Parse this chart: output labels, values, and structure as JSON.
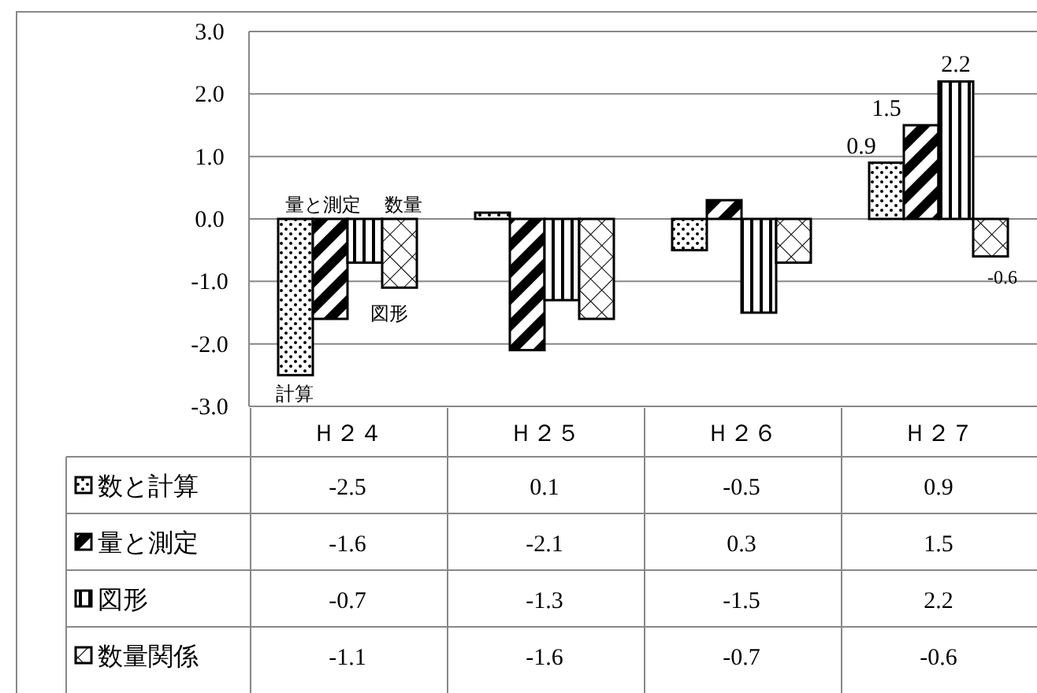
{
  "chart_data": {
    "type": "bar",
    "categories": [
      "Ｈ２４",
      "Ｈ２５",
      "Ｈ２６",
      "Ｈ２７"
    ],
    "series": [
      {
        "name": "数と計算",
        "color": "#000000",
        "values": [
          -2.5,
          0.1,
          -0.5,
          0.9
        ],
        "value_labels": [
          "-2.5",
          "0.1",
          "-0.5",
          "0.9"
        ]
      },
      {
        "name": "量と測定",
        "color": "#000000",
        "values": [
          -1.6,
          -2.1,
          0.3,
          1.5
        ],
        "value_labels": [
          "-1.6",
          "-2.1",
          "0.3",
          "1.5"
        ]
      },
      {
        "name": "図形",
        "color": "#000000",
        "values": [
          -0.7,
          -1.3,
          -1.5,
          2.2
        ],
        "value_labels": [
          "-0.7",
          "-1.3",
          "-1.5",
          "2.2"
        ]
      },
      {
        "name": "数量関係",
        "color": "#000000",
        "values": [
          -1.1,
          -1.6,
          -0.7,
          -0.6
        ],
        "value_labels": [
          "-1.1",
          "-1.6",
          "-0.7",
          "-0.6"
        ]
      }
    ],
    "ylim": [
      -3,
      3
    ],
    "yticks": [
      {
        "value": -3,
        "label": "-3.0"
      },
      {
        "value": -2,
        "label": "-2.0"
      },
      {
        "value": -1,
        "label": "-1.0"
      },
      {
        "value": 0,
        "label": "0.0"
      },
      {
        "value": 1,
        "label": "1.0"
      },
      {
        "value": 2,
        "label": "2.0"
      },
      {
        "value": 3,
        "label": "3.0"
      }
    ],
    "grid": "y",
    "legend": "bottom",
    "annotations": [
      "計算",
      "量と測定",
      "図形",
      "数量",
      {
        "text": "0.9",
        "x": "Ｈ２７",
        "y": 0.9
      },
      {
        "text": "1.5",
        "x": "Ｈ２７",
        "y": 1.5
      },
      {
        "text": "2.2",
        "x": "Ｈ２７",
        "y": 2.2
      },
      "-0.6"
    ]
  }
}
